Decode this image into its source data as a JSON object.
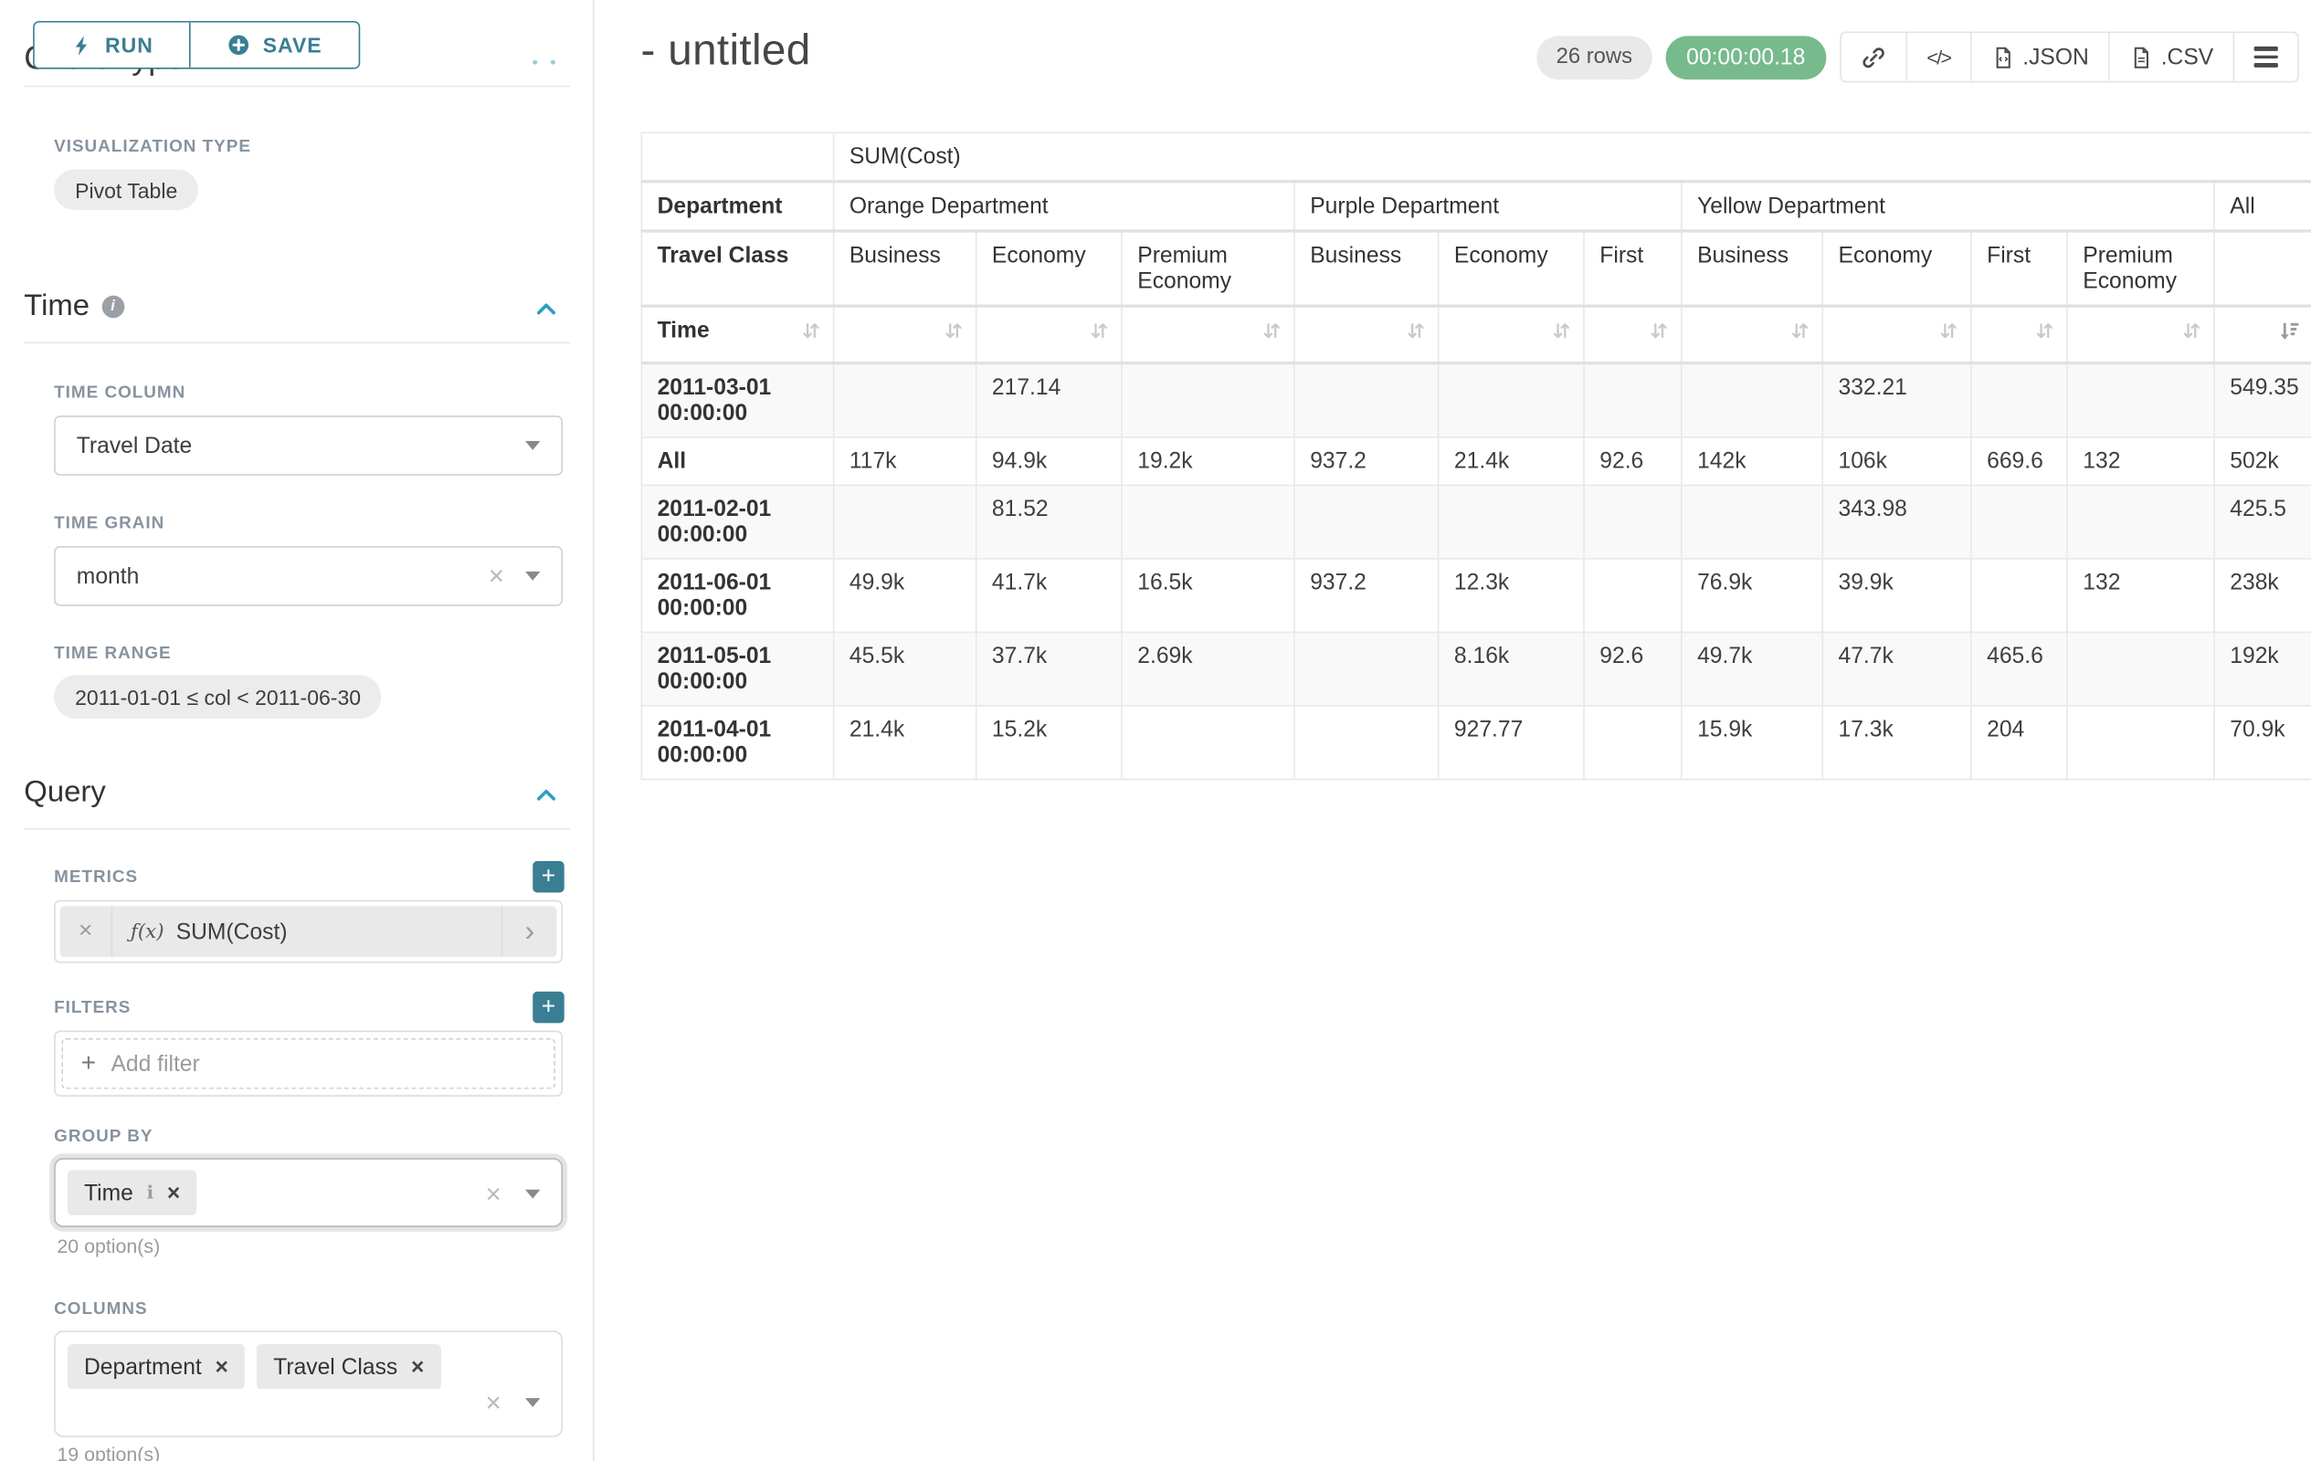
{
  "accent": "#3a7e93",
  "accent_bright": "#2d9fc0",
  "timer_green": "#77ba8c",
  "sidebar": {
    "run_label": "RUN",
    "save_label": "SAVE",
    "chart_type_section": "Chart Type",
    "viz_type_label": "VISUALIZATION TYPE",
    "viz_type_value": "Pivot Table",
    "time_section": "Time",
    "time_column_label": "TIME COLUMN",
    "time_column_value": "Travel Date",
    "time_grain_label": "TIME GRAIN",
    "time_grain_value": "month",
    "time_range_label": "TIME RANGE",
    "time_range_value": "2011-01-01 ≤ col < 2011-06-30",
    "query_section": "Query",
    "metrics_label": "METRICS",
    "metric_fx": "ƒ(x)",
    "metric_value": "SUM(Cost)",
    "filters_label": "FILTERS",
    "add_filter_label": "Add filter",
    "group_by_label": "GROUP BY",
    "group_by_chips": [
      "Time"
    ],
    "group_by_options": "20 option(s)",
    "columns_label": "COLUMNS",
    "columns_chips": [
      "Department",
      "Travel Class"
    ],
    "columns_options": "19 option(s)"
  },
  "header": {
    "title": "- untitled",
    "rows_badge": "26 rows",
    "timer": "00:00:00.18",
    "code_icon_label": "</>",
    "json_label": ".JSON",
    "csv_label": ".CSV"
  },
  "table": {
    "metric_header": "SUM(Cost)",
    "row_dims": [
      "Department",
      "Travel Class"
    ],
    "time_label": "Time",
    "groups": [
      {
        "label": "Orange Department",
        "span": 3
      },
      {
        "label": "Purple Department",
        "span": 3
      },
      {
        "label": "Yellow Department",
        "span": 4
      },
      {
        "label": "All",
        "span": 1
      }
    ],
    "classes": [
      "Business",
      "Economy",
      "Premium Economy",
      "Business",
      "Economy",
      "First",
      "Business",
      "Economy",
      "First",
      "Premium Economy"
    ],
    "sorted_column": "All",
    "sort_direction": "descending",
    "rows": [
      {
        "label": "2011-03-01 00:00:00",
        "values": [
          "",
          "217.14",
          "",
          "",
          "",
          "",
          "",
          "332.21",
          "",
          "",
          "549.35"
        ]
      },
      {
        "label": "All",
        "values": [
          "117k",
          "94.9k",
          "19.2k",
          "937.2",
          "21.4k",
          "92.6",
          "142k",
          "106k",
          "669.6",
          "132",
          "502k"
        ]
      },
      {
        "label": "2011-02-01 00:00:00",
        "values": [
          "",
          "81.52",
          "",
          "",
          "",
          "",
          "",
          "343.98",
          "",
          "",
          "425.5"
        ]
      },
      {
        "label": "2011-06-01 00:00:00",
        "values": [
          "49.9k",
          "41.7k",
          "16.5k",
          "937.2",
          "12.3k",
          "",
          "76.9k",
          "39.9k",
          "",
          "132",
          "238k"
        ]
      },
      {
        "label": "2011-05-01 00:00:00",
        "values": [
          "45.5k",
          "37.7k",
          "2.69k",
          "",
          "8.16k",
          "92.6",
          "49.7k",
          "47.7k",
          "465.6",
          "",
          "192k"
        ]
      },
      {
        "label": "2011-04-01 00:00:00",
        "values": [
          "21.4k",
          "15.2k",
          "",
          "",
          "927.77",
          "",
          "15.9k",
          "17.3k",
          "204",
          "",
          "70.9k"
        ]
      }
    ]
  }
}
